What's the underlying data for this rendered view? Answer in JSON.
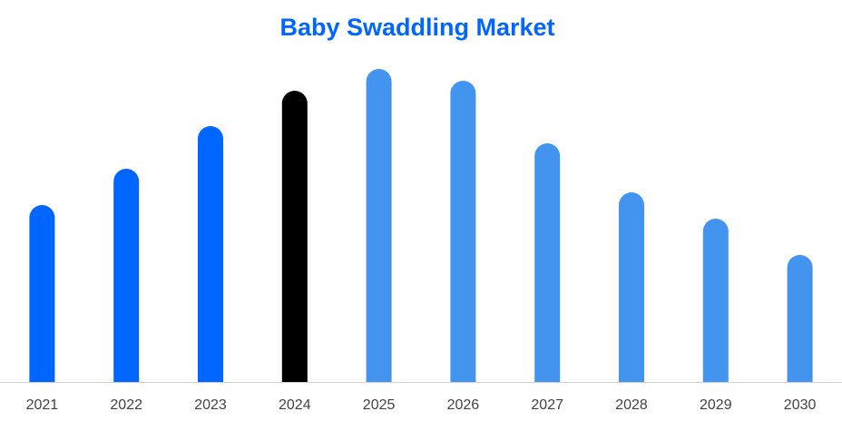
{
  "chart_data": {
    "type": "bar",
    "title": "Baby Swaddling Market",
    "categories": [
      "2021",
      "2022",
      "2023",
      "2024",
      "2025",
      "2026",
      "2027",
      "2028",
      "2029",
      "2030"
    ],
    "values": [
      195,
      235,
      282,
      321,
      345,
      332,
      263,
      209,
      180,
      140
    ],
    "colors": [
      "#0066ff",
      "#0066ff",
      "#0066ff",
      "#000000",
      "#4394ee",
      "#4394ee",
      "#4394ee",
      "#4394ee",
      "#4394ee",
      "#4394ee"
    ]
  }
}
